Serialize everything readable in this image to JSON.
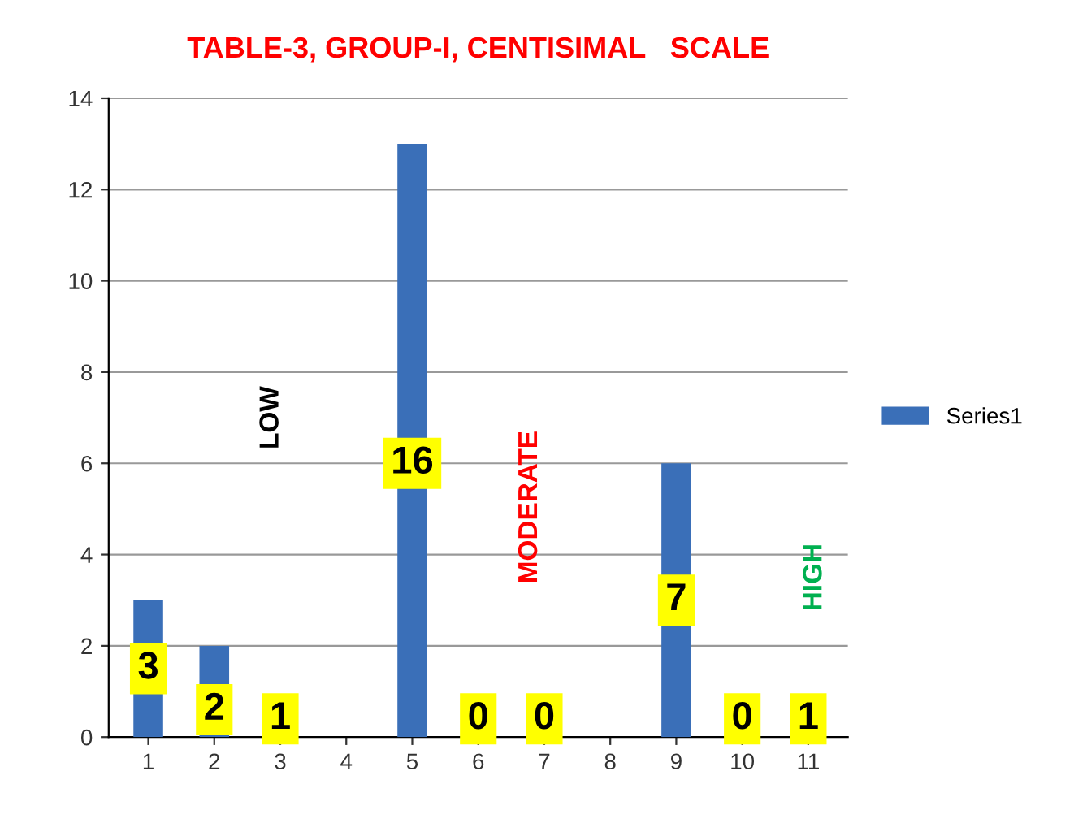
{
  "chart_data": {
    "type": "bar",
    "title": "TABLE-3, GROUP-I, CENTISIMAL   SCALE",
    "categories": [
      "1",
      "2",
      "3",
      "4",
      "5",
      "6",
      "7",
      "8",
      "9",
      "10",
      "11"
    ],
    "series": [
      {
        "name": "Series1",
        "color": "#3a6fb8",
        "values": [
          3,
          2,
          0,
          0,
          13,
          0,
          0,
          0,
          6,
          0,
          0
        ]
      }
    ],
    "ylim": [
      0,
      14
    ],
    "yticks": [
      0,
      2,
      4,
      6,
      8,
      10,
      12,
      14
    ],
    "grid": "y",
    "legend": "right",
    "annotations": [
      {
        "text": "3",
        "x": "1",
        "y": 1.5
      },
      {
        "text": "2",
        "x": "2",
        "y": 0.6
      },
      {
        "text": "1",
        "x": "3",
        "y": 0.4
      },
      {
        "text": "16",
        "x": "5",
        "y": 6
      },
      {
        "text": "0",
        "x": "6",
        "y": 0.4
      },
      {
        "text": "0",
        "x": "7",
        "y": 0.4
      },
      {
        "text": "7",
        "x": "9",
        "y": 3
      },
      {
        "text": "0",
        "x": "10",
        "y": 0.4
      },
      {
        "text": "1",
        "x": "11",
        "y": 0.4
      },
      "LOW",
      "MODERATE",
      "HIGH"
    ]
  }
}
